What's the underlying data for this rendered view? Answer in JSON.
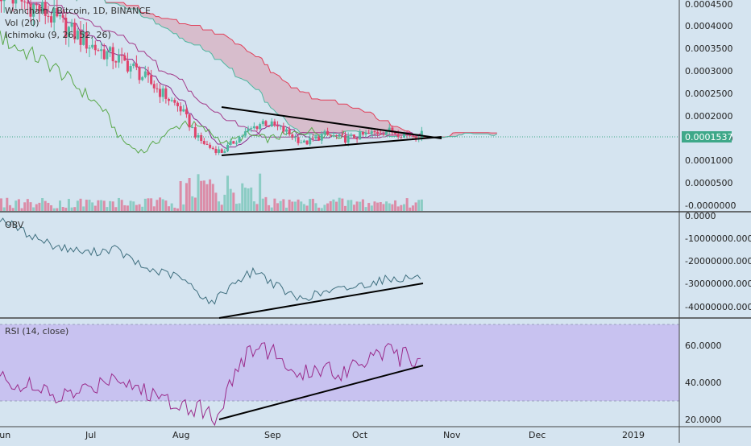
{
  "legend": {
    "symbol": "Wanchain / Bitcoin, 1D, BINANCE",
    "volume": "Vol (20)",
    "ichimoku": "Ichimoku (9, 26, 52, 26)",
    "obv": "OBV",
    "rsi": "RSI (14, close)"
  },
  "colors": {
    "background": "#d5e4f0",
    "up": "#4fb8a1",
    "down": "#e0436b",
    "cloud_fill": "#d8a3b4",
    "leading_span_b": "#e0405a",
    "conversion": "#8a2a8a",
    "base": "#a33a8a",
    "lagging": "#5aa84a",
    "obv_line": "#3f6f7f",
    "rsi_line": "#9a2a8a",
    "rsi_band": "#c8c2f0",
    "trendline": "#000000",
    "price_label_bg": "#3ea889"
  },
  "price_axis": {
    "ticks": [
      "0.0004500",
      "0.0004000",
      "0.0003500",
      "0.0003000",
      "0.0002500",
      "0.0002000",
      "0.0001500",
      "0.0001000",
      "0.0000500",
      "-0.0000000"
    ],
    "last_price": "0.0001537",
    "values": [
      0.00045,
      0.0004,
      0.00035,
      0.0003,
      0.00025,
      0.0002,
      0.00015,
      0.0001,
      5e-05,
      0
    ]
  },
  "obv_axis": {
    "ticks": [
      "0.0000",
      "-10000000.0000",
      "-20000000.0000",
      "-30000000.0000",
      "-40000000.0000"
    ],
    "values": [
      0,
      -10000000,
      -20000000,
      -30000000,
      -40000000
    ]
  },
  "rsi_axis": {
    "ticks": [
      "60.0000",
      "40.0000",
      "20.0000"
    ],
    "values": [
      60,
      40,
      20
    ]
  },
  "time_axis": {
    "labels": [
      "Jun",
      "Jul",
      "Aug",
      "Sep",
      "Oct",
      "Nov",
      "Dec",
      "2019"
    ]
  },
  "chart_data": [
    {
      "type": "line",
      "panel": "price",
      "x_dates": [
        "2018-06-01",
        "2018-06-15",
        "2018-07-01",
        "2018-07-15",
        "2018-08-01",
        "2018-08-07",
        "2018-08-11",
        "2018-08-15",
        "2018-08-22",
        "2018-08-29",
        "2018-09-05",
        "2018-09-12",
        "2018-09-19",
        "2018-09-26",
        "2018-10-03",
        "2018-10-10",
        "2018-10-17",
        "2018-10-22"
      ],
      "series": [
        {
          "values": [
            0.00049,
            0.00045,
            0.00037,
            0.00032,
            0.00022,
            0.00015,
            0.00013,
            0.00012,
            0.00016,
            0.00019,
            0.00017,
            0.00014,
            0.00016,
            0.00015,
            0.00016,
            0.00017,
            0.00016,
            0.00016
          ]
        }
      ],
      "ylim": [
        -1e-05,
        0.00047
      ]
    },
    {
      "type": "line",
      "panel": "obv",
      "x_dates": [
        "2018-06-01",
        "2018-06-10",
        "2018-06-20",
        "2018-07-01",
        "2018-07-10",
        "2018-07-20",
        "2018-08-01",
        "2018-08-12",
        "2018-08-20",
        "2018-08-27",
        "2018-09-03",
        "2018-09-10",
        "2018-09-20",
        "2018-10-01",
        "2018-10-10",
        "2018-10-22"
      ],
      "series": [
        {
          "values": [
            -1000000,
            -8000000,
            -14000000,
            -17000000,
            -15000000,
            -24000000,
            -28000000,
            -40000000,
            -30000000,
            -25000000,
            -32000000,
            -38000000,
            -35000000,
            -32000000,
            -29000000,
            -28000000
          ]
        }
      ],
      "ylim": [
        -46000000,
        0
      ]
    },
    {
      "type": "line",
      "panel": "rsi",
      "x_dates": [
        "2018-06-01",
        "2018-06-10",
        "2018-06-20",
        "2018-07-01",
        "2018-07-10",
        "2018-07-20",
        "2018-08-01",
        "2018-08-10",
        "2018-08-13",
        "2018-08-20",
        "2018-08-27",
        "2018-09-03",
        "2018-09-10",
        "2018-09-17",
        "2018-09-24",
        "2018-10-01",
        "2018-10-08",
        "2018-10-15",
        "2018-10-22"
      ],
      "series": [
        {
          "values": [
            42,
            38,
            32,
            36,
            44,
            35,
            30,
            26,
            21,
            45,
            58,
            54,
            40,
            48,
            44,
            50,
            56,
            52,
            52
          ]
        }
      ],
      "ylim": [
        18,
        70
      ],
      "bands": [
        30,
        70
      ]
    }
  ]
}
